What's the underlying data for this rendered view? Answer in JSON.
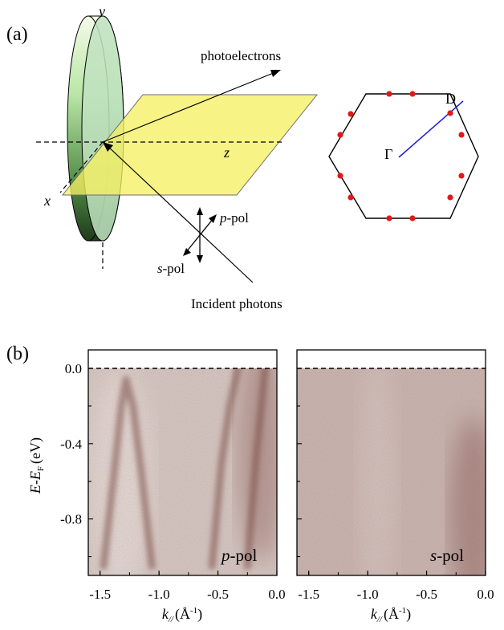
{
  "panel_a": {
    "label": "(a)",
    "axis_y": "y",
    "axis_z": "z",
    "axis_x": "x",
    "photoelectrons_label": "photoelectrons",
    "p_pol_italic": "p",
    "p_pol_rest": "-pol",
    "s_pol_italic": "s",
    "s_pol_rest": "-pol",
    "incident_label": "Incident photons",
    "bz_gamma": "Γ",
    "bz_d": "D",
    "colors": {
      "plane": "#f5f061",
      "disk": "#8fd88f",
      "cut": "#1a1adc",
      "points": "#e01818"
    }
  },
  "panel_b": {
    "label": "(b)",
    "ylabel_main": "E-E",
    "ylabel_sub": "F",
    "ylabel_unit": "(eV)",
    "xlabel_k": "k",
    "xlabel_sub": "//",
    "xlabel_unit": "(Å",
    "xlabel_exp": "-1",
    "xlabel_close": ")",
    "left_tag_italic": "p",
    "left_tag_rest": "-pol",
    "right_tag_italic": "s",
    "right_tag_rest": "-pol",
    "intensity_color": "#7a4a45"
  },
  "chart_data": [
    {
      "type": "heatmap",
      "title": "",
      "xlabel": "k// (Å-1)",
      "ylabel": "E-EF (eV)",
      "xlim": [
        -1.6,
        0.0
      ],
      "ylim": [
        -1.1,
        0.1
      ],
      "xticks": [
        "-1.5",
        "-1.0",
        "-0.5",
        "0.0"
      ],
      "yticks": [
        "0.0",
        "-0.4",
        "-0.8"
      ],
      "annotation": "p-pol",
      "fermi_level": 0.0,
      "bands": [
        {
          "points": [
            [
              -1.47,
              -1.05
            ],
            [
              -1.38,
              -0.55
            ],
            [
              -1.32,
              -0.2
            ],
            [
              -1.28,
              -0.06
            ],
            [
              -1.22,
              -0.2
            ],
            [
              -1.15,
              -0.55
            ],
            [
              -1.06,
              -1.05
            ]
          ]
        },
        {
          "points": [
            [
              -0.55,
              -1.05
            ],
            [
              -0.47,
              -0.5
            ],
            [
              -0.4,
              -0.2
            ],
            [
              -0.33,
              0.0
            ]
          ]
        },
        {
          "points": [
            [
              -0.25,
              -1.05
            ],
            [
              -0.18,
              -0.5
            ],
            [
              -0.1,
              0.0
            ]
          ]
        }
      ]
    },
    {
      "type": "heatmap",
      "title": "",
      "xlabel": "k// (Å-1)",
      "ylabel": "",
      "xlim": [
        -1.6,
        0.0
      ],
      "ylim": [
        -1.1,
        0.1
      ],
      "xticks": [
        "-1.5",
        "-1.0",
        "-0.5",
        "0.0"
      ],
      "yticks": [],
      "annotation": "s-pol",
      "fermi_level": 0.0,
      "bands": []
    }
  ]
}
